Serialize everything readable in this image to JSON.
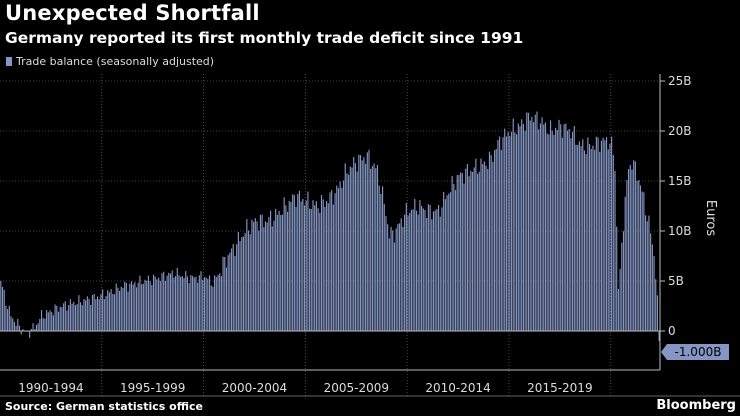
{
  "header": {
    "title": "Unexpected Shortfall",
    "subtitle": "Germany reported its first monthly trade deficit since 1991"
  },
  "footer": {
    "source": "Source: German statistics office",
    "brand": "Bloomberg"
  },
  "colors": {
    "bar": "#8596c4",
    "callout": "#8596c4",
    "grid": "#5a5a5a",
    "background": "#000000"
  },
  "chart_data": {
    "type": "bar",
    "title": "Unexpected Shortfall",
    "subtitle": "Germany reported its first monthly trade deficit since 1991",
    "ylabel": "Euros",
    "xlabel": "",
    "legend": [
      "Trade balance (seasonally adjusted)"
    ],
    "legend_position": "top-left",
    "ylim": [
      -3.3,
      26
    ],
    "yticks": [
      0,
      5,
      10,
      15,
      20,
      25
    ],
    "ytick_labels": [
      "0",
      "5B",
      "10B",
      "15B",
      "20B",
      "25B"
    ],
    "period_labels": [
      "1990-1994",
      "1995-1999",
      "2000-2004",
      "2005-2009",
      "2010-2014",
      "2015-2019"
    ],
    "x_start": "1990-01",
    "x_end": "2022-05",
    "last_value_label": "-1.000B",
    "anchors": [
      [
        1990.0,
        5.0
      ],
      [
        1990.25,
        3.0
      ],
      [
        1990.5,
        1.5
      ],
      [
        1991.0,
        0.2
      ],
      [
        1991.3,
        -0.3
      ],
      [
        1991.7,
        0.5
      ],
      [
        1992.0,
        1.5
      ],
      [
        1992.5,
        2.0
      ],
      [
        1993.0,
        2.5
      ],
      [
        1993.5,
        2.8
      ],
      [
        1994.0,
        3.0
      ],
      [
        1994.5,
        3.3
      ],
      [
        1995.0,
        3.6
      ],
      [
        1995.5,
        4.0
      ],
      [
        1996.0,
        4.5
      ],
      [
        1996.5,
        4.7
      ],
      [
        1997.0,
        5.0
      ],
      [
        1997.5,
        5.2
      ],
      [
        1998.0,
        5.5
      ],
      [
        1998.5,
        5.8
      ],
      [
        1999.0,
        5.5
      ],
      [
        1999.5,
        5.3
      ],
      [
        2000.0,
        5.5
      ],
      [
        2000.4,
        4.8
      ],
      [
        2000.8,
        6.0
      ],
      [
        2001.0,
        7.0
      ],
      [
        2001.5,
        8.5
      ],
      [
        2002.0,
        10.0
      ],
      [
        2002.5,
        11.0
      ],
      [
        2003.0,
        11.0
      ],
      [
        2003.5,
        11.5
      ],
      [
        2004.0,
        12.5
      ],
      [
        2004.5,
        13.5
      ],
      [
        2005.0,
        13.0
      ],
      [
        2005.5,
        12.5
      ],
      [
        2006.0,
        13.0
      ],
      [
        2006.5,
        14.0
      ],
      [
        2007.0,
        16.0
      ],
      [
        2007.5,
        17.0
      ],
      [
        2008.0,
        17.5
      ],
      [
        2008.5,
        16.0
      ],
      [
        2008.9,
        12.0
      ],
      [
        2009.1,
        9.5
      ],
      [
        2009.4,
        10.0
      ],
      [
        2009.8,
        11.5
      ],
      [
        2010.0,
        12.0
      ],
      [
        2010.5,
        12.5
      ],
      [
        2011.0,
        12.0
      ],
      [
        2011.5,
        12.0
      ],
      [
        2012.0,
        14.0
      ],
      [
        2012.5,
        15.5
      ],
      [
        2013.0,
        16.0
      ],
      [
        2013.5,
        16.5
      ],
      [
        2014.0,
        17.0
      ],
      [
        2014.5,
        19.0
      ],
      [
        2015.0,
        20.0
      ],
      [
        2015.5,
        20.5
      ],
      [
        2016.0,
        21.5
      ],
      [
        2016.5,
        21.0
      ],
      [
        2017.0,
        20.0
      ],
      [
        2017.5,
        20.5
      ],
      [
        2018.0,
        20.0
      ],
      [
        2018.5,
        18.5
      ],
      [
        2019.0,
        18.5
      ],
      [
        2019.5,
        19.0
      ],
      [
        2019.9,
        19.0
      ],
      [
        2020.15,
        17.5
      ],
      [
        2020.3,
        7.0
      ],
      [
        2020.35,
        3.0
      ],
      [
        2020.5,
        9.0
      ],
      [
        2020.8,
        16.0
      ],
      [
        2021.0,
        17.0
      ],
      [
        2021.3,
        15.5
      ],
      [
        2021.6,
        13.0
      ],
      [
        2021.9,
        10.0
      ],
      [
        2022.1,
        7.5
      ],
      [
        2022.25,
        3.0
      ],
      [
        2022.33,
        -1.0
      ]
    ]
  }
}
